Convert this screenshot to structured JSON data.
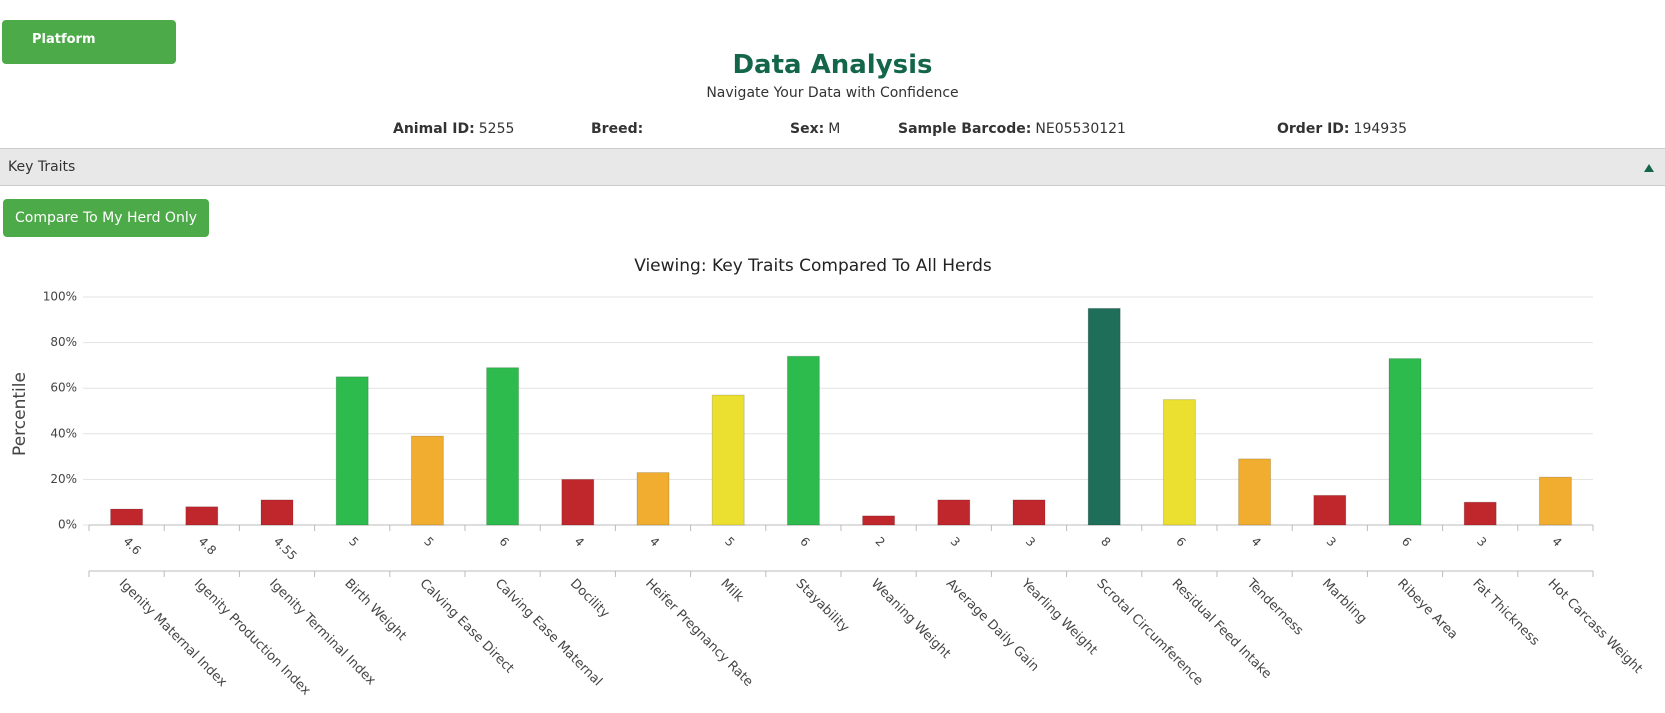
{
  "header": {
    "button": "Platform",
    "title": "Data Analysis",
    "subtitle": "Navigate Your Data with Confidence"
  },
  "info": [
    {
      "label": "Animal ID:",
      "value": "5255"
    },
    {
      "label": "Breed:"
    },
    {
      "label": "Sex:",
      "value": "M"
    },
    {
      "label": "Sample Barcode:",
      "value": "NE05530121"
    },
    {
      "label": "Order ID:",
      "value": "194935"
    }
  ],
  "section": {
    "title": "Key Traits"
  },
  "compare_button": "Compare To My Herd Only",
  "chart_data": {
    "type": "bar",
    "title": "Viewing: Key Traits Compared To All Herds",
    "y_label": "Percentile",
    "categories": [
      "Igenity Maternal Index",
      "Igenity Production Index",
      "Igenity Terminal Index",
      "Birth Weight",
      "Calving Ease Direct",
      "Calving Ease Maternal",
      "Docility",
      "Heifer Pregnancy Rate",
      "Milk",
      "Stayability",
      "Weaning Weight",
      "Average Daily Gain",
      "Yearling Weight",
      "Scrotal Circumference",
      "Residual Feed Intake",
      "Tenderness",
      "Marbling",
      "Ribeye Area",
      "Fat Thickness",
      "Hot Carcass Weight"
    ],
    "scores": [
      "4.6",
      "4.8",
      "4.55",
      "5",
      "5",
      "6",
      "4",
      "4",
      "5",
      "6",
      "2",
      "3",
      "3",
      "8",
      "6",
      "4",
      "3",
      "6",
      "3",
      "4"
    ],
    "values": [
      7,
      8,
      11,
      65,
      39,
      69,
      20,
      23,
      57,
      74,
      4,
      11,
      11,
      95,
      55,
      29,
      13,
      73,
      10,
      21
    ],
    "colors": [
      "#c0272d",
      "#c0272d",
      "#c0272d",
      "#2dbb4e",
      "#f0ad30",
      "#2dbb4e",
      "#c0272d",
      "#f0ad30",
      "#ebe030",
      "#2dbb4e",
      "#c0272d",
      "#c0272d",
      "#c0272d",
      "#1f6e5a",
      "#ebe030",
      "#f0ad30",
      "#c0272d",
      "#2dbb4e",
      "#c0272d",
      "#f0ad30"
    ],
    "ylim": [
      0,
      100
    ],
    "yticks": [
      {
        "value": 0,
        "label": "0%"
      },
      {
        "value": 20,
        "label": "20%"
      },
      {
        "value": 40,
        "label": "40%"
      },
      {
        "value": 60,
        "label": "60%"
      },
      {
        "value": 80,
        "label": "80%"
      },
      {
        "value": 100,
        "label": "100%"
      }
    ],
    "grid": true
  }
}
